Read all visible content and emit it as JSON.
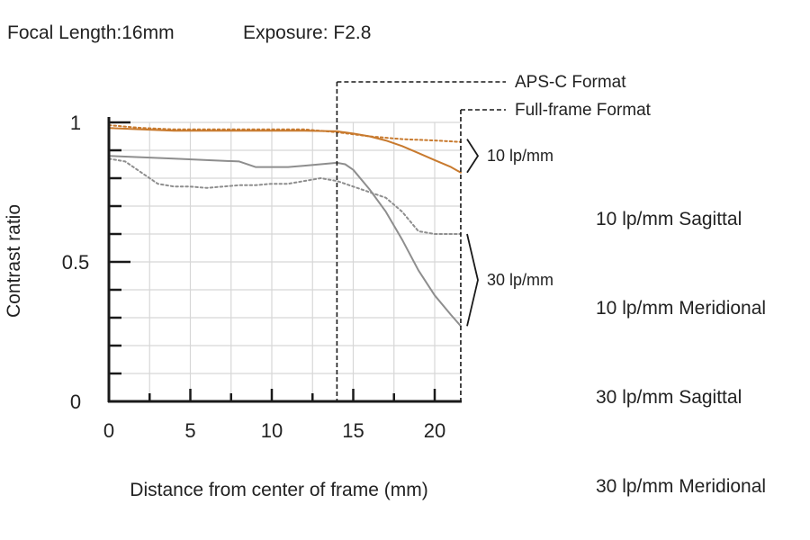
{
  "header": {
    "focal_length": "Focal Length:16mm",
    "exposure": "Exposure: F2.8"
  },
  "chart_data": {
    "type": "line",
    "xlabel": "Distance from center of frame (mm)",
    "ylabel": "Contrast ratio",
    "xlim": [
      0,
      21.6
    ],
    "ylim": [
      0,
      1
    ],
    "x_ticks": [
      0,
      5,
      10,
      15,
      20
    ],
    "y_tick_labels": [
      {
        "value": 0,
        "label": "0"
      },
      {
        "value": 0.5,
        "label": "0.5"
      },
      {
        "value": 1,
        "label": "1"
      }
    ],
    "grid": true,
    "format_markers": [
      {
        "label": "APS-C Format",
        "x": 14.0
      },
      {
        "label": "Full-frame Format",
        "x": 21.6
      }
    ],
    "bracket_labels": [
      {
        "label": "10 lp/mm",
        "y_range": [
          0.82,
          0.94
        ]
      },
      {
        "label": "30 lp/mm",
        "y_range": [
          0.27,
          0.6
        ]
      }
    ],
    "series": [
      {
        "name": "10 lp/mm Sagittal",
        "color": "#c87a2e",
        "dash": "solid",
        "x": [
          0,
          2,
          4,
          6,
          8,
          10,
          12,
          14,
          15,
          16,
          17,
          18,
          19,
          20,
          21,
          21.6
        ],
        "y": [
          0.98,
          0.975,
          0.97,
          0.97,
          0.97,
          0.97,
          0.97,
          0.968,
          0.96,
          0.95,
          0.935,
          0.915,
          0.89,
          0.865,
          0.84,
          0.82
        ]
      },
      {
        "name": "10 lp/mm Meridional",
        "color": "#c87a2e",
        "dash": "dotted",
        "x": [
          0,
          2,
          4,
          6,
          8,
          10,
          12,
          14,
          16,
          18,
          20,
          21.6
        ],
        "y": [
          0.99,
          0.98,
          0.975,
          0.975,
          0.975,
          0.975,
          0.975,
          0.965,
          0.95,
          0.94,
          0.935,
          0.93
        ]
      },
      {
        "name": "30 lp/mm Sagittal",
        "color": "#8e8e8e",
        "dash": "solid",
        "x": [
          0,
          2,
          4,
          6,
          8,
          9,
          10,
          11,
          12,
          13,
          14,
          14.5,
          15,
          16,
          17,
          18,
          19,
          20,
          21,
          21.6
        ],
        "y": [
          0.88,
          0.875,
          0.87,
          0.865,
          0.86,
          0.84,
          0.84,
          0.84,
          0.845,
          0.85,
          0.855,
          0.85,
          0.83,
          0.76,
          0.68,
          0.58,
          0.47,
          0.38,
          0.31,
          0.27
        ]
      },
      {
        "name": "30 lp/mm Meridional",
        "color": "#8e8e8e",
        "dash": "dotted",
        "x": [
          0,
          1,
          2,
          3,
          4,
          5,
          6,
          7,
          8,
          9,
          10,
          11,
          12,
          13,
          14,
          15,
          16,
          17,
          18,
          19,
          20,
          21,
          21.6
        ],
        "y": [
          0.87,
          0.86,
          0.82,
          0.78,
          0.77,
          0.77,
          0.765,
          0.77,
          0.775,
          0.775,
          0.78,
          0.78,
          0.79,
          0.8,
          0.79,
          0.77,
          0.75,
          0.73,
          0.68,
          0.61,
          0.6,
          0.6,
          0.6
        ]
      }
    ]
  }
}
